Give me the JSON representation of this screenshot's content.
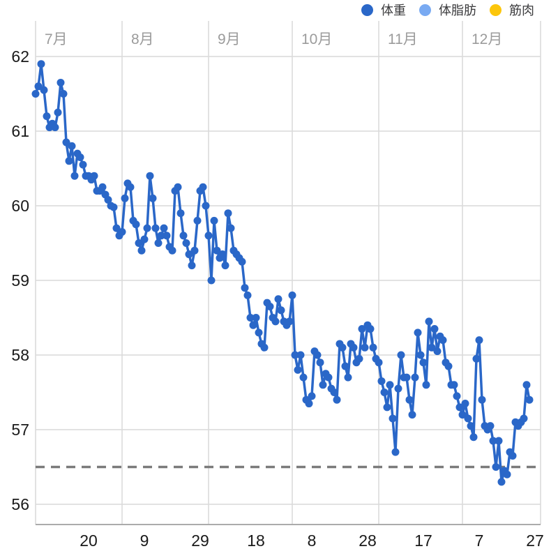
{
  "legend": {
    "items": [
      {
        "id": "weight",
        "label": "体重",
        "color": "#2a67c8"
      },
      {
        "id": "bodyfat",
        "label": "体脂肪",
        "color": "#79aaf2"
      },
      {
        "id": "muscle",
        "label": "筋肉",
        "color": "#fcc60b"
      }
    ]
  },
  "chart_data": {
    "type": "line",
    "title": "",
    "xlabel": "",
    "ylabel": "",
    "y_ticks": [
      62,
      61,
      60,
      59,
      58,
      57,
      56
    ],
    "ylim": [
      55.73,
      62.48
    ],
    "grid": true,
    "legend_position": "top-right",
    "months": [
      {
        "label": "7月",
        "date": "7/1"
      },
      {
        "label": "8月",
        "date": "8/1"
      },
      {
        "label": "9月",
        "date": "9/1"
      },
      {
        "label": "10月",
        "date": "10/1"
      },
      {
        "label": "11月",
        "date": "11/1"
      },
      {
        "label": "12月",
        "date": "12/1"
      }
    ],
    "x_ticks": [
      {
        "label": "20",
        "date": "7/20"
      },
      {
        "label": "9",
        "date": "8/9"
      },
      {
        "label": "29",
        "date": "8/29"
      },
      {
        "label": "18",
        "date": "9/18"
      },
      {
        "label": "8",
        "date": "10/8"
      },
      {
        "label": "28",
        "date": "10/28"
      },
      {
        "label": "17",
        "date": "11/17"
      },
      {
        "label": "7",
        "date": "12/7"
      },
      {
        "label": "27",
        "date": "12/27"
      }
    ],
    "goal_line": {
      "value": 56.5,
      "style": "dashed",
      "color": "#7b7b7b"
    },
    "colors": {
      "grid": "#d9d9d9",
      "axis_bottom": "#ababab",
      "tick_text": "#1a1a1a",
      "month_text": "#9b9b9b"
    },
    "series": [
      {
        "name": "体重",
        "color": "#2a67c8",
        "data_by_month": [
          {
            "month": 7,
            "month_label": "7月",
            "daily_values": [
              61.5,
              61.6,
              61.9,
              61.55,
              61.2,
              61.05,
              61.1,
              61.05,
              61.25,
              61.65,
              61.5,
              60.85,
              60.6,
              60.8,
              60.4,
              60.7,
              60.65,
              60.55,
              60.4,
              60.4,
              60.35,
              60.4,
              60.2,
              60.2,
              60.25,
              60.15,
              60.08,
              60.0,
              59.98,
              59.7,
              59.6
            ]
          },
          {
            "month": 8,
            "month_label": "8月",
            "daily_values": [
              59.65,
              60.1,
              60.3,
              60.25,
              59.8,
              59.75,
              59.5,
              59.4,
              59.55,
              59.7,
              60.4,
              60.1,
              59.7,
              59.5,
              59.6,
              59.7,
              59.6,
              59.45,
              59.4,
              60.2,
              60.25,
              59.9,
              59.6,
              59.5,
              59.35,
              59.2,
              59.4,
              59.8,
              60.2,
              60.25,
              60.0
            ]
          },
          {
            "month": 9,
            "month_label": "9月",
            "daily_values": [
              59.6,
              59.0,
              59.8,
              59.4,
              59.3,
              59.35,
              59.2,
              59.9,
              59.7,
              59.4,
              59.35,
              59.3,
              59.25,
              58.9,
              58.8,
              58.5,
              58.4,
              58.5,
              58.3,
              58.15,
              58.1,
              58.7,
              58.65,
              58.5,
              58.45,
              58.75,
              58.6,
              58.45,
              58.4,
              58.45
            ]
          },
          {
            "month": 10,
            "month_label": "10月",
            "daily_values": [
              58.8,
              58.0,
              57.8,
              58.0,
              57.7,
              57.4,
              57.35,
              57.45,
              58.05,
              58.0,
              57.9,
              57.6,
              57.75,
              57.7,
              57.55,
              57.5,
              57.4,
              58.15,
              58.1,
              57.85,
              57.7,
              58.15,
              58.1,
              57.9,
              57.95,
              58.35,
              58.1,
              58.4,
              58.35,
              58.1,
              57.95
            ]
          },
          {
            "month": 11,
            "month_label": "11月",
            "daily_values": [
              57.9,
              57.65,
              57.5,
              57.3,
              57.6,
              57.15,
              56.7,
              57.55,
              58.0,
              57.7,
              57.7,
              57.4,
              57.2,
              57.7,
              58.3,
              58.0,
              57.9,
              57.6,
              58.45,
              58.1,
              58.35,
              58.05,
              58.25,
              58.2,
              57.9,
              57.85,
              57.6,
              57.6,
              57.45,
              57.3
            ]
          },
          {
            "month": 12,
            "month_label": "12月",
            "daily_values": [
              57.2,
              57.35,
              57.15,
              57.05,
              56.9,
              57.95,
              58.2,
              57.4,
              57.05,
              57.0,
              57.05,
              56.85,
              56.5,
              56.85,
              56.3,
              56.45,
              56.4,
              56.7,
              56.65,
              57.1,
              57.05,
              57.1,
              57.15,
              57.6,
              57.4
            ]
          }
        ]
      },
      {
        "name": "体脂肪",
        "color": "#79aaf2",
        "data_by_month": []
      },
      {
        "name": "筋肉",
        "color": "#fcc60b",
        "data_by_month": []
      }
    ]
  }
}
